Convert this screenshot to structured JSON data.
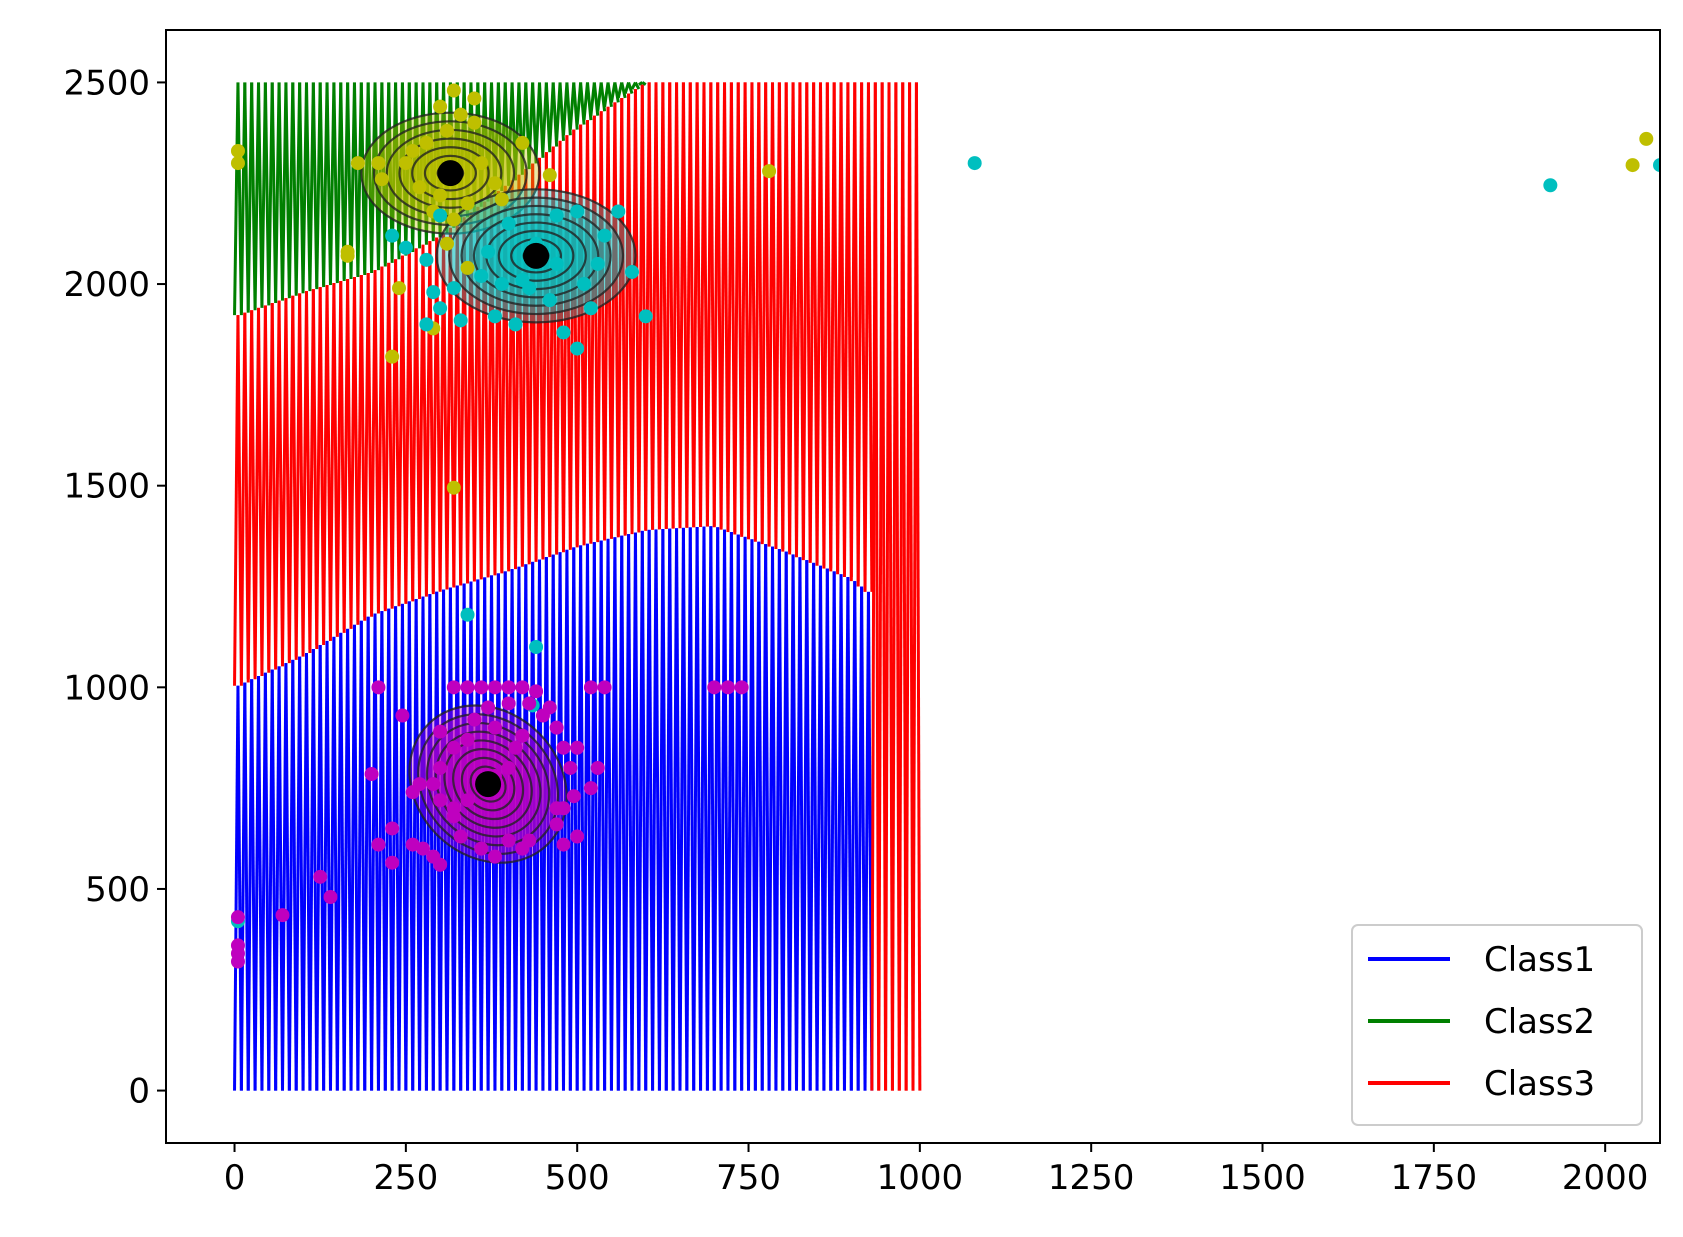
{
  "chart_data": {
    "type": "line",
    "title": "",
    "xlabel": "",
    "ylabel": "",
    "xlim": [
      -100,
      2080
    ],
    "ylim": [
      -130,
      2630
    ],
    "x_ticks": [
      0,
      250,
      500,
      750,
      1000,
      1250,
      1500,
      1750,
      2000
    ],
    "y_ticks": [
      0,
      500,
      1000,
      1500,
      2000,
      2500
    ],
    "grid": false,
    "legend_position": "bottom-right",
    "series": [
      {
        "name": "Class1",
        "color": "#0000ff"
      },
      {
        "name": "Class2",
        "color": "#008000"
      },
      {
        "name": "Class3",
        "color": "#ff0000"
      }
    ],
    "zigzag": {
      "x_start": 0,
      "x_end": 1000,
      "step": 10,
      "y_min": 0,
      "y_max": 2500,
      "class1_class3_boundary": [
        [
          0,
          1000
        ],
        [
          100,
          1080
        ],
        [
          200,
          1180
        ],
        [
          300,
          1240
        ],
        [
          400,
          1290
        ],
        [
          500,
          1350
        ],
        [
          600,
          1390
        ],
        [
          700,
          1400
        ],
        [
          800,
          1340
        ],
        [
          900,
          1270
        ],
        [
          930,
          1230
        ]
      ],
      "class2_class3_boundary": [
        [
          0,
          1920
        ],
        [
          100,
          1980
        ],
        [
          200,
          2030
        ],
        [
          300,
          2120
        ],
        [
          400,
          2250
        ],
        [
          500,
          2390
        ],
        [
          600,
          2500
        ]
      ]
    },
    "centers": [
      {
        "x": 315,
        "y": 2275,
        "color": "#000000"
      },
      {
        "x": 440,
        "y": 2070,
        "color": "#000000"
      },
      {
        "x": 370,
        "y": 760,
        "color": "#000000"
      }
    ],
    "contours": [
      {
        "cx": 315,
        "cy": 2275,
        "sx": 130,
        "sy": 150,
        "angle": 0,
        "rings": 7,
        "fill": "#bfbf00"
      },
      {
        "cx": 440,
        "cy": 2070,
        "sx": 145,
        "sy": 165,
        "angle": 0,
        "rings": 8,
        "fill": "#00bfbf"
      },
      {
        "cx": 370,
        "cy": 760,
        "sx": 105,
        "sy": 210,
        "angle": -45,
        "rings": 9,
        "fill": "#bf00bf"
      }
    ],
    "point_groups": [
      {
        "color": "#bfbf00",
        "points": [
          [
            5,
            2330
          ],
          [
            5,
            2300
          ],
          [
            180,
            2300
          ],
          [
            210,
            2300
          ],
          [
            215,
            2260
          ],
          [
            165,
            2080
          ],
          [
            165,
            2070
          ],
          [
            240,
            1990
          ],
          [
            230,
            1820
          ],
          [
            290,
            1890
          ],
          [
            320,
            1495
          ],
          [
            780,
            2280
          ],
          [
            420,
            2350
          ],
          [
            460,
            2270
          ],
          [
            2040,
            2295
          ],
          [
            2060,
            2360
          ],
          [
            300,
            2440
          ],
          [
            320,
            2480
          ],
          [
            350,
            2460
          ],
          [
            330,
            2420
          ],
          [
            310,
            2380
          ],
          [
            280,
            2350
          ],
          [
            260,
            2330
          ],
          [
            360,
            2300
          ],
          [
            380,
            2250
          ],
          [
            300,
            2220
          ],
          [
            270,
            2240
          ],
          [
            340,
            2200
          ],
          [
            390,
            2210
          ],
          [
            320,
            2160
          ],
          [
            350,
            2400
          ],
          [
            250,
            2300
          ],
          [
            290,
            2180
          ],
          [
            310,
            2100
          ],
          [
            340,
            2040
          ]
        ]
      },
      {
        "color": "#00bfbf",
        "points": [
          [
            1080,
            2300
          ],
          [
            1920,
            2245
          ],
          [
            2080,
            2295
          ],
          [
            5,
            420
          ],
          [
            340,
            1180
          ],
          [
            440,
            1100
          ],
          [
            435,
            955
          ],
          [
            600,
            1920
          ],
          [
            560,
            2180
          ],
          [
            500,
            1840
          ],
          [
            480,
            1880
          ],
          [
            410,
            1900
          ],
          [
            380,
            1920
          ],
          [
            330,
            1910
          ],
          [
            300,
            1940
          ],
          [
            290,
            1980
          ],
          [
            280,
            1900
          ],
          [
            250,
            2090
          ],
          [
            230,
            2120
          ],
          [
            440,
            2100
          ],
          [
            470,
            2050
          ],
          [
            510,
            2000
          ],
          [
            520,
            1940
          ],
          [
            540,
            2120
          ],
          [
            500,
            2180
          ],
          [
            400,
            2150
          ],
          [
            370,
            2080
          ],
          [
            430,
            1990
          ],
          [
            460,
            1960
          ],
          [
            390,
            2000
          ],
          [
            530,
            2050
          ],
          [
            580,
            2030
          ],
          [
            470,
            2170
          ],
          [
            420,
            2010
          ],
          [
            360,
            2020
          ],
          [
            300,
            2170
          ],
          [
            280,
            2060
          ],
          [
            320,
            1990
          ]
        ]
      },
      {
        "color": "#bf00bf",
        "points": [
          [
            5,
            430
          ],
          [
            5,
            360
          ],
          [
            5,
            340
          ],
          [
            5,
            320
          ],
          [
            70,
            435
          ],
          [
            125,
            530
          ],
          [
            140,
            480
          ],
          [
            200,
            785
          ],
          [
            210,
            1000
          ],
          [
            210,
            610
          ],
          [
            230,
            650
          ],
          [
            230,
            565
          ],
          [
            245,
            930
          ],
          [
            260,
            610
          ],
          [
            270,
            760
          ],
          [
            260,
            740
          ],
          [
            275,
            600
          ],
          [
            290,
            580
          ],
          [
            300,
            560
          ],
          [
            300,
            890
          ],
          [
            320,
            1000
          ],
          [
            340,
            1000
          ],
          [
            360,
            1000
          ],
          [
            380,
            1000
          ],
          [
            400,
            1000
          ],
          [
            420,
            1000
          ],
          [
            440,
            990
          ],
          [
            460,
            950
          ],
          [
            470,
            900
          ],
          [
            480,
            850
          ],
          [
            490,
            800
          ],
          [
            495,
            730
          ],
          [
            500,
            630
          ],
          [
            480,
            610
          ],
          [
            470,
            660
          ],
          [
            470,
            700
          ],
          [
            430,
            620
          ],
          [
            420,
            600
          ],
          [
            400,
            620
          ],
          [
            380,
            580
          ],
          [
            360,
            600
          ],
          [
            330,
            630
          ],
          [
            320,
            680
          ],
          [
            340,
            720
          ],
          [
            360,
            750
          ],
          [
            380,
            780
          ],
          [
            400,
            800
          ],
          [
            410,
            850
          ],
          [
            420,
            880
          ],
          [
            380,
            900
          ],
          [
            350,
            920
          ],
          [
            340,
            870
          ],
          [
            320,
            850
          ],
          [
            300,
            800
          ],
          [
            290,
            760
          ],
          [
            300,
            720
          ],
          [
            320,
            700
          ],
          [
            500,
            850
          ],
          [
            520,
            750
          ],
          [
            530,
            800
          ],
          [
            520,
            1000
          ],
          [
            540,
            1000
          ],
          [
            700,
            1000
          ],
          [
            720,
            1000
          ],
          [
            740,
            1000
          ],
          [
            480,
            700
          ],
          [
            450,
            930
          ],
          [
            430,
            960
          ],
          [
            400,
            960
          ],
          [
            370,
            950
          ]
        ]
      }
    ]
  }
}
